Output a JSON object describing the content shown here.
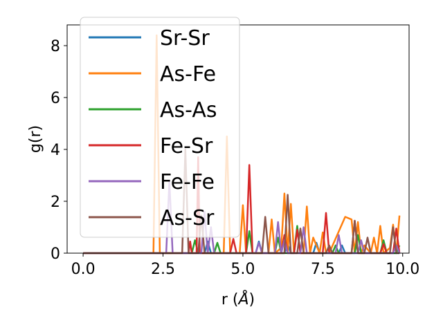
{
  "chart_data": {
    "type": "line",
    "xlabel_prefix": "r (",
    "xlabel_unit": "Å",
    "xlabel_suffix": ")",
    "ylabel": "g(r)",
    "xlim": [
      -0.5,
      10.2
    ],
    "ylim": [
      0,
      8.8
    ],
    "xticks": [
      0,
      2.5,
      5,
      7.5,
      10
    ],
    "xtick_labels": [
      "0.0",
      "2.5",
      "5.0",
      "7.5",
      "10.0"
    ],
    "yticks": [
      0,
      2,
      4,
      6,
      8
    ],
    "ytick_labels": [
      "0",
      "2",
      "4",
      "6",
      "8"
    ],
    "grid": false,
    "legend_position": "top-left",
    "series": [
      {
        "name": "Sr-Sr",
        "color": "#1f77b4",
        "x": [
          0,
          3.8,
          3.9,
          4.0,
          5.4,
          5.5,
          5.6,
          6.3,
          6.4,
          6.5,
          7.2,
          7.3,
          7.4,
          8.0,
          8.1,
          8.2,
          9.9
        ],
        "y": [
          0,
          0,
          0.45,
          0,
          0,
          0.45,
          0,
          0,
          0.35,
          0,
          0,
          0.4,
          0,
          0,
          0.3,
          0,
          0
        ]
      },
      {
        "name": "As-Fe",
        "color": "#ff7f0e",
        "x": [
          0,
          2.2,
          2.3,
          2.4,
          4.4,
          4.5,
          4.6,
          4.9,
          5.0,
          5.1,
          5.8,
          5.9,
          6.0,
          6.2,
          6.3,
          6.4,
          6.5,
          6.6,
          6.9,
          7.0,
          7.1,
          7.2,
          7.4,
          7.5,
          7.6,
          7.7,
          8.2,
          8.4,
          8.5,
          8.6,
          8.7,
          8.8,
          9.0,
          9.1,
          9.2,
          9.3,
          9.4,
          9.6,
          9.7,
          9.8,
          9.9
        ],
        "y": [
          0,
          0,
          8.4,
          0,
          0,
          4.5,
          0,
          0,
          1.85,
          0,
          0,
          1.3,
          0,
          0.2,
          2.3,
          0,
          1.9,
          0,
          0,
          1.8,
          0,
          0.6,
          0,
          0.8,
          0,
          0,
          1.4,
          1.3,
          0,
          1.2,
          0,
          0.3,
          0,
          0.6,
          0,
          1.05,
          0,
          0.2,
          1.1,
          0,
          1.45
        ]
      },
      {
        "name": "As-As",
        "color": "#2ca02c",
        "x": [
          0,
          3.4,
          3.5,
          3.6,
          4.1,
          4.2,
          4.3,
          5.1,
          5.2,
          5.3,
          6.0,
          6.1,
          6.2,
          6.6,
          6.7,
          6.8,
          7.8,
          7.9,
          8.0,
          8.5,
          8.6,
          8.7,
          9.3,
          9.4,
          9.5,
          9.8,
          9.9
        ],
        "y": [
          0,
          0,
          0.5,
          0,
          0,
          0.4,
          0,
          0,
          0.85,
          0,
          0,
          0.6,
          0,
          0,
          1.05,
          0,
          0,
          0.3,
          0,
          0,
          0.7,
          0,
          0,
          0.5,
          0,
          0,
          0.3
        ]
      },
      {
        "name": "Fe-Sr",
        "color": "#d62728",
        "x": [
          0,
          3.3,
          3.35,
          3.4,
          3.55,
          3.6,
          3.65,
          4.6,
          4.7,
          4.8,
          5.1,
          5.2,
          5.3,
          6.2,
          6.3,
          6.4,
          6.6,
          6.7,
          6.8,
          7.5,
          7.6,
          7.7,
          8.4,
          8.5,
          8.6,
          9.3,
          9.4,
          9.5,
          9.7,
          9.8,
          9.9
        ],
        "y": [
          0,
          0,
          0.45,
          0,
          0,
          3.7,
          0,
          0,
          0.55,
          0,
          0,
          3.4,
          0,
          0,
          0.7,
          0,
          0,
          0.9,
          0,
          0,
          1.55,
          0,
          0,
          1.25,
          0,
          0,
          0.35,
          0,
          0,
          0.95,
          0
        ]
      },
      {
        "name": "Fe-Fe",
        "color": "#9467bd",
        "x": [
          0,
          2.6,
          2.7,
          2.8,
          3.7,
          3.8,
          3.9,
          4.0,
          4.1,
          5.4,
          5.5,
          5.6,
          6.0,
          6.1,
          6.2,
          6.3,
          6.4,
          6.8,
          6.9,
          7.0,
          7.9,
          8.0,
          8.1,
          8.6,
          8.7,
          8.8,
          9.7,
          9.8,
          9.9
        ],
        "y": [
          0,
          0,
          2.8,
          0,
          0,
          1.6,
          0,
          1.0,
          0,
          0,
          0.4,
          0,
          0,
          1.2,
          0,
          0.5,
          0,
          0,
          1.0,
          0,
          0,
          0.7,
          0,
          0,
          0.5,
          0,
          0,
          0.3,
          0
        ]
      },
      {
        "name": "As-Sr",
        "color": "#8c564b",
        "x": [
          0,
          3.1,
          3.2,
          3.3,
          3.6,
          3.7,
          3.8,
          5.6,
          5.7,
          5.8,
          6.3,
          6.4,
          6.5,
          6.7,
          6.8,
          6.9,
          7.6,
          7.7,
          7.8,
          8.4,
          8.5,
          8.6,
          8.8,
          8.9,
          9.0,
          9.6,
          9.7,
          9.8,
          9.9
        ],
        "y": [
          0,
          0,
          4.0,
          0,
          0,
          1.45,
          0,
          0,
          1.4,
          0,
          0,
          2.25,
          0,
          0,
          0.95,
          0,
          0,
          0.3,
          0,
          0,
          1.25,
          0,
          0,
          0.6,
          0,
          0,
          1.0,
          0,
          0
        ]
      }
    ]
  }
}
